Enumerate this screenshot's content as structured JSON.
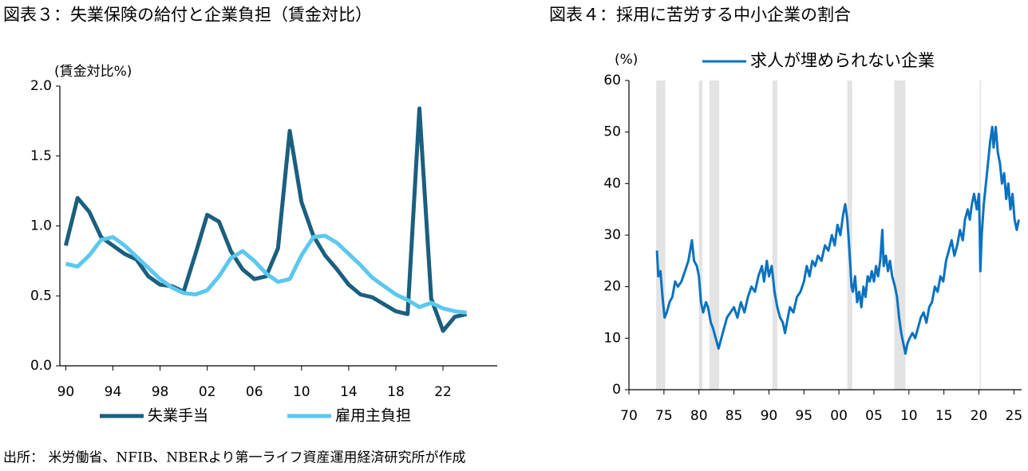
{
  "chart_data": [
    {
      "type": "line",
      "title": "図表３：失業保険の給付と企業負担（賃金対比）",
      "ylabel": "(賃金対比%)",
      "x": [
        1990,
        1991,
        1992,
        1993,
        1994,
        1995,
        1996,
        1997,
        1998,
        1999,
        2000,
        2001,
        2002,
        2003,
        2004,
        2005,
        2006,
        2007,
        2008,
        2009,
        2010,
        2011,
        2012,
        2013,
        2014,
        2015,
        2016,
        2017,
        2018,
        2019,
        2020,
        2021,
        2022,
        2023,
        2024
      ],
      "series": [
        {
          "name": "失業手当",
          "color": "#1b5f7e",
          "values": [
            0.86,
            1.2,
            1.1,
            0.92,
            0.86,
            0.8,
            0.76,
            0.64,
            0.58,
            0.57,
            0.53,
            0.8,
            1.08,
            1.03,
            0.82,
            0.69,
            0.62,
            0.64,
            0.84,
            1.68,
            1.17,
            0.93,
            0.79,
            0.69,
            0.58,
            0.51,
            0.49,
            0.44,
            0.39,
            0.37,
            1.84,
            0.48,
            0.25,
            0.35,
            0.37
          ]
        },
        {
          "name": "雇用主負担",
          "color": "#5bc8ee",
          "values": [
            0.73,
            0.71,
            0.79,
            0.9,
            0.92,
            0.86,
            0.78,
            0.7,
            0.62,
            0.56,
            0.52,
            0.51,
            0.54,
            0.64,
            0.77,
            0.82,
            0.75,
            0.66,
            0.6,
            0.62,
            0.79,
            0.92,
            0.93,
            0.88,
            0.8,
            0.72,
            0.63,
            0.57,
            0.51,
            0.47,
            0.42,
            0.45,
            0.41,
            0.39,
            0.38
          ]
        }
      ],
      "xlim": [
        1989.5,
        2026.6
      ],
      "xticks": [
        {
          "value": 1990,
          "label": "90"
        },
        {
          "value": 1994,
          "label": "94"
        },
        {
          "value": 1998,
          "label": "98"
        },
        {
          "value": 2002,
          "label": "02"
        },
        {
          "value": 2006,
          "label": "06"
        },
        {
          "value": 2010,
          "label": "10"
        },
        {
          "value": 2014,
          "label": "14"
        },
        {
          "value": 2018,
          "label": "18"
        },
        {
          "value": 2022,
          "label": "22"
        }
      ],
      "ylim": [
        0,
        2
      ],
      "yticks": [
        {
          "value": 0,
          "label": "0.0"
        },
        0.5,
        {
          "value": 1,
          "label": "1.0"
        },
        1.5,
        {
          "value": 2,
          "label": "2.0"
        }
      ],
      "legend": "bottom"
    },
    {
      "type": "line",
      "title": "図表４：採用に苦労する中小企業の割合",
      "ylabel": "(%)",
      "x": [
        1974.0,
        1974.2,
        1974.5,
        1974.8,
        1975.1,
        1975.4,
        1975.8,
        1976.2,
        1976.6,
        1977.0,
        1977.5,
        1978.0,
        1978.5,
        1979.0,
        1979.3,
        1979.7,
        1980.0,
        1980.3,
        1980.6,
        1981.0,
        1981.3,
        1981.7,
        1982.0,
        1982.4,
        1982.8,
        1983.2,
        1983.6,
        1984.0,
        1984.5,
        1985.0,
        1985.5,
        1986.0,
        1986.5,
        1987.0,
        1987.5,
        1988.0,
        1988.5,
        1989.0,
        1989.3,
        1989.7,
        1990.0,
        1990.4,
        1990.8,
        1991.2,
        1991.6,
        1992.0,
        1992.3,
        1992.7,
        1993.0,
        1993.5,
        1994.0,
        1994.5,
        1995.0,
        1995.4,
        1995.8,
        1996.2,
        1996.6,
        1997.0,
        1997.5,
        1998.0,
        1998.5,
        1999.0,
        1999.4,
        1999.8,
        2000.2,
        2000.6,
        2000.9,
        2001.2,
        2001.5,
        2001.8,
        2002.0,
        2002.3,
        2002.6,
        2002.9,
        2003.2,
        2003.5,
        2003.8,
        2004.1,
        2004.4,
        2004.7,
        2005.0,
        2005.3,
        2005.6,
        2005.9,
        2006.2,
        2006.4,
        2006.7,
        2007.0,
        2007.3,
        2007.6,
        2008.0,
        2008.3,
        2008.6,
        2008.9,
        2009.2,
        2009.5,
        2009.8,
        2010.1,
        2010.5,
        2010.9,
        2011.3,
        2011.7,
        2012.1,
        2012.5,
        2012.9,
        2013.3,
        2013.7,
        2014.1,
        2014.5,
        2014.9,
        2015.3,
        2015.7,
        2016.1,
        2016.5,
        2016.9,
        2017.3,
        2017.7,
        2018.0,
        2018.4,
        2018.7,
        2019.0,
        2019.3,
        2019.7,
        2020.0,
        2020.1,
        2020.2,
        2020.4,
        2020.7,
        2021.0,
        2021.3,
        2021.6,
        2021.9,
        2022.1,
        2022.4,
        2022.7,
        2023.0,
        2023.3,
        2023.6,
        2023.9,
        2024.2,
        2024.5,
        2024.8,
        2025.1,
        2025.4,
        2025.7
      ],
      "series": [
        {
          "name": "求人が埋められない企業",
          "color": "#0a72c0",
          "values": [
            27,
            22,
            23,
            18,
            14,
            15,
            17,
            18,
            21,
            20,
            21,
            23,
            25,
            29,
            25,
            24,
            22,
            17,
            15,
            17,
            16,
            13,
            12,
            10,
            8,
            10,
            12,
            14,
            15,
            16,
            14,
            17,
            15,
            18,
            20,
            19,
            22,
            24,
            21,
            25,
            22,
            24,
            19,
            16,
            14,
            13,
            11,
            14,
            16,
            15,
            18,
            19,
            21,
            24,
            22,
            25,
            24,
            26,
            25,
            28,
            27,
            30,
            28,
            32,
            30,
            34,
            36,
            33,
            27,
            20,
            19,
            22,
            17,
            19,
            16,
            20,
            18,
            22,
            21,
            23,
            21,
            24,
            22,
            25,
            31,
            24,
            26,
            23,
            25,
            22,
            20,
            18,
            14,
            11,
            9,
            7,
            9,
            10,
            11,
            10,
            12,
            14,
            15,
            13,
            16,
            17,
            20,
            19,
            22,
            21,
            25,
            27,
            29,
            26,
            28,
            31,
            29,
            33,
            35,
            33,
            36,
            38,
            35,
            38,
            32,
            23,
            30,
            36,
            40,
            44,
            48,
            51,
            47,
            51,
            46,
            44,
            40,
            42,
            37,
            40,
            35,
            38,
            33,
            31,
            33
          ]
        }
      ],
      "recessions": [
        [
          1973.9,
          1975.2
        ],
        [
          1980.0,
          1980.5
        ],
        [
          1981.5,
          1982.9
        ],
        [
          1990.5,
          1991.2
        ],
        [
          2001.2,
          2001.9
        ],
        [
          2007.9,
          2009.5
        ],
        [
          2020.1,
          2020.3
        ]
      ],
      "xlim": [
        1970,
        2026.1
      ],
      "xticks": [
        {
          "value": 1970,
          "label": "70"
        },
        {
          "value": 1975,
          "label": "75"
        },
        {
          "value": 1980,
          "label": "80"
        },
        {
          "value": 1985,
          "label": "85"
        },
        {
          "value": 1990,
          "label": "90"
        },
        {
          "value": 1995,
          "label": "95"
        },
        {
          "value": 2000,
          "label": "00"
        },
        {
          "value": 2005,
          "label": "05"
        },
        {
          "value": 2010,
          "label": "10"
        },
        {
          "value": 2015,
          "label": "15"
        },
        {
          "value": 2020,
          "label": "20"
        },
        {
          "value": 2025,
          "label": "25"
        }
      ],
      "ylim": [
        0,
        60
      ],
      "yticks": [
        0,
        10,
        20,
        30,
        40,
        50,
        60
      ],
      "legend": "top"
    }
  ],
  "source": "出所： 米労働省、NFIB、NBERより第一ライフ資産運用経済研究所が作成"
}
